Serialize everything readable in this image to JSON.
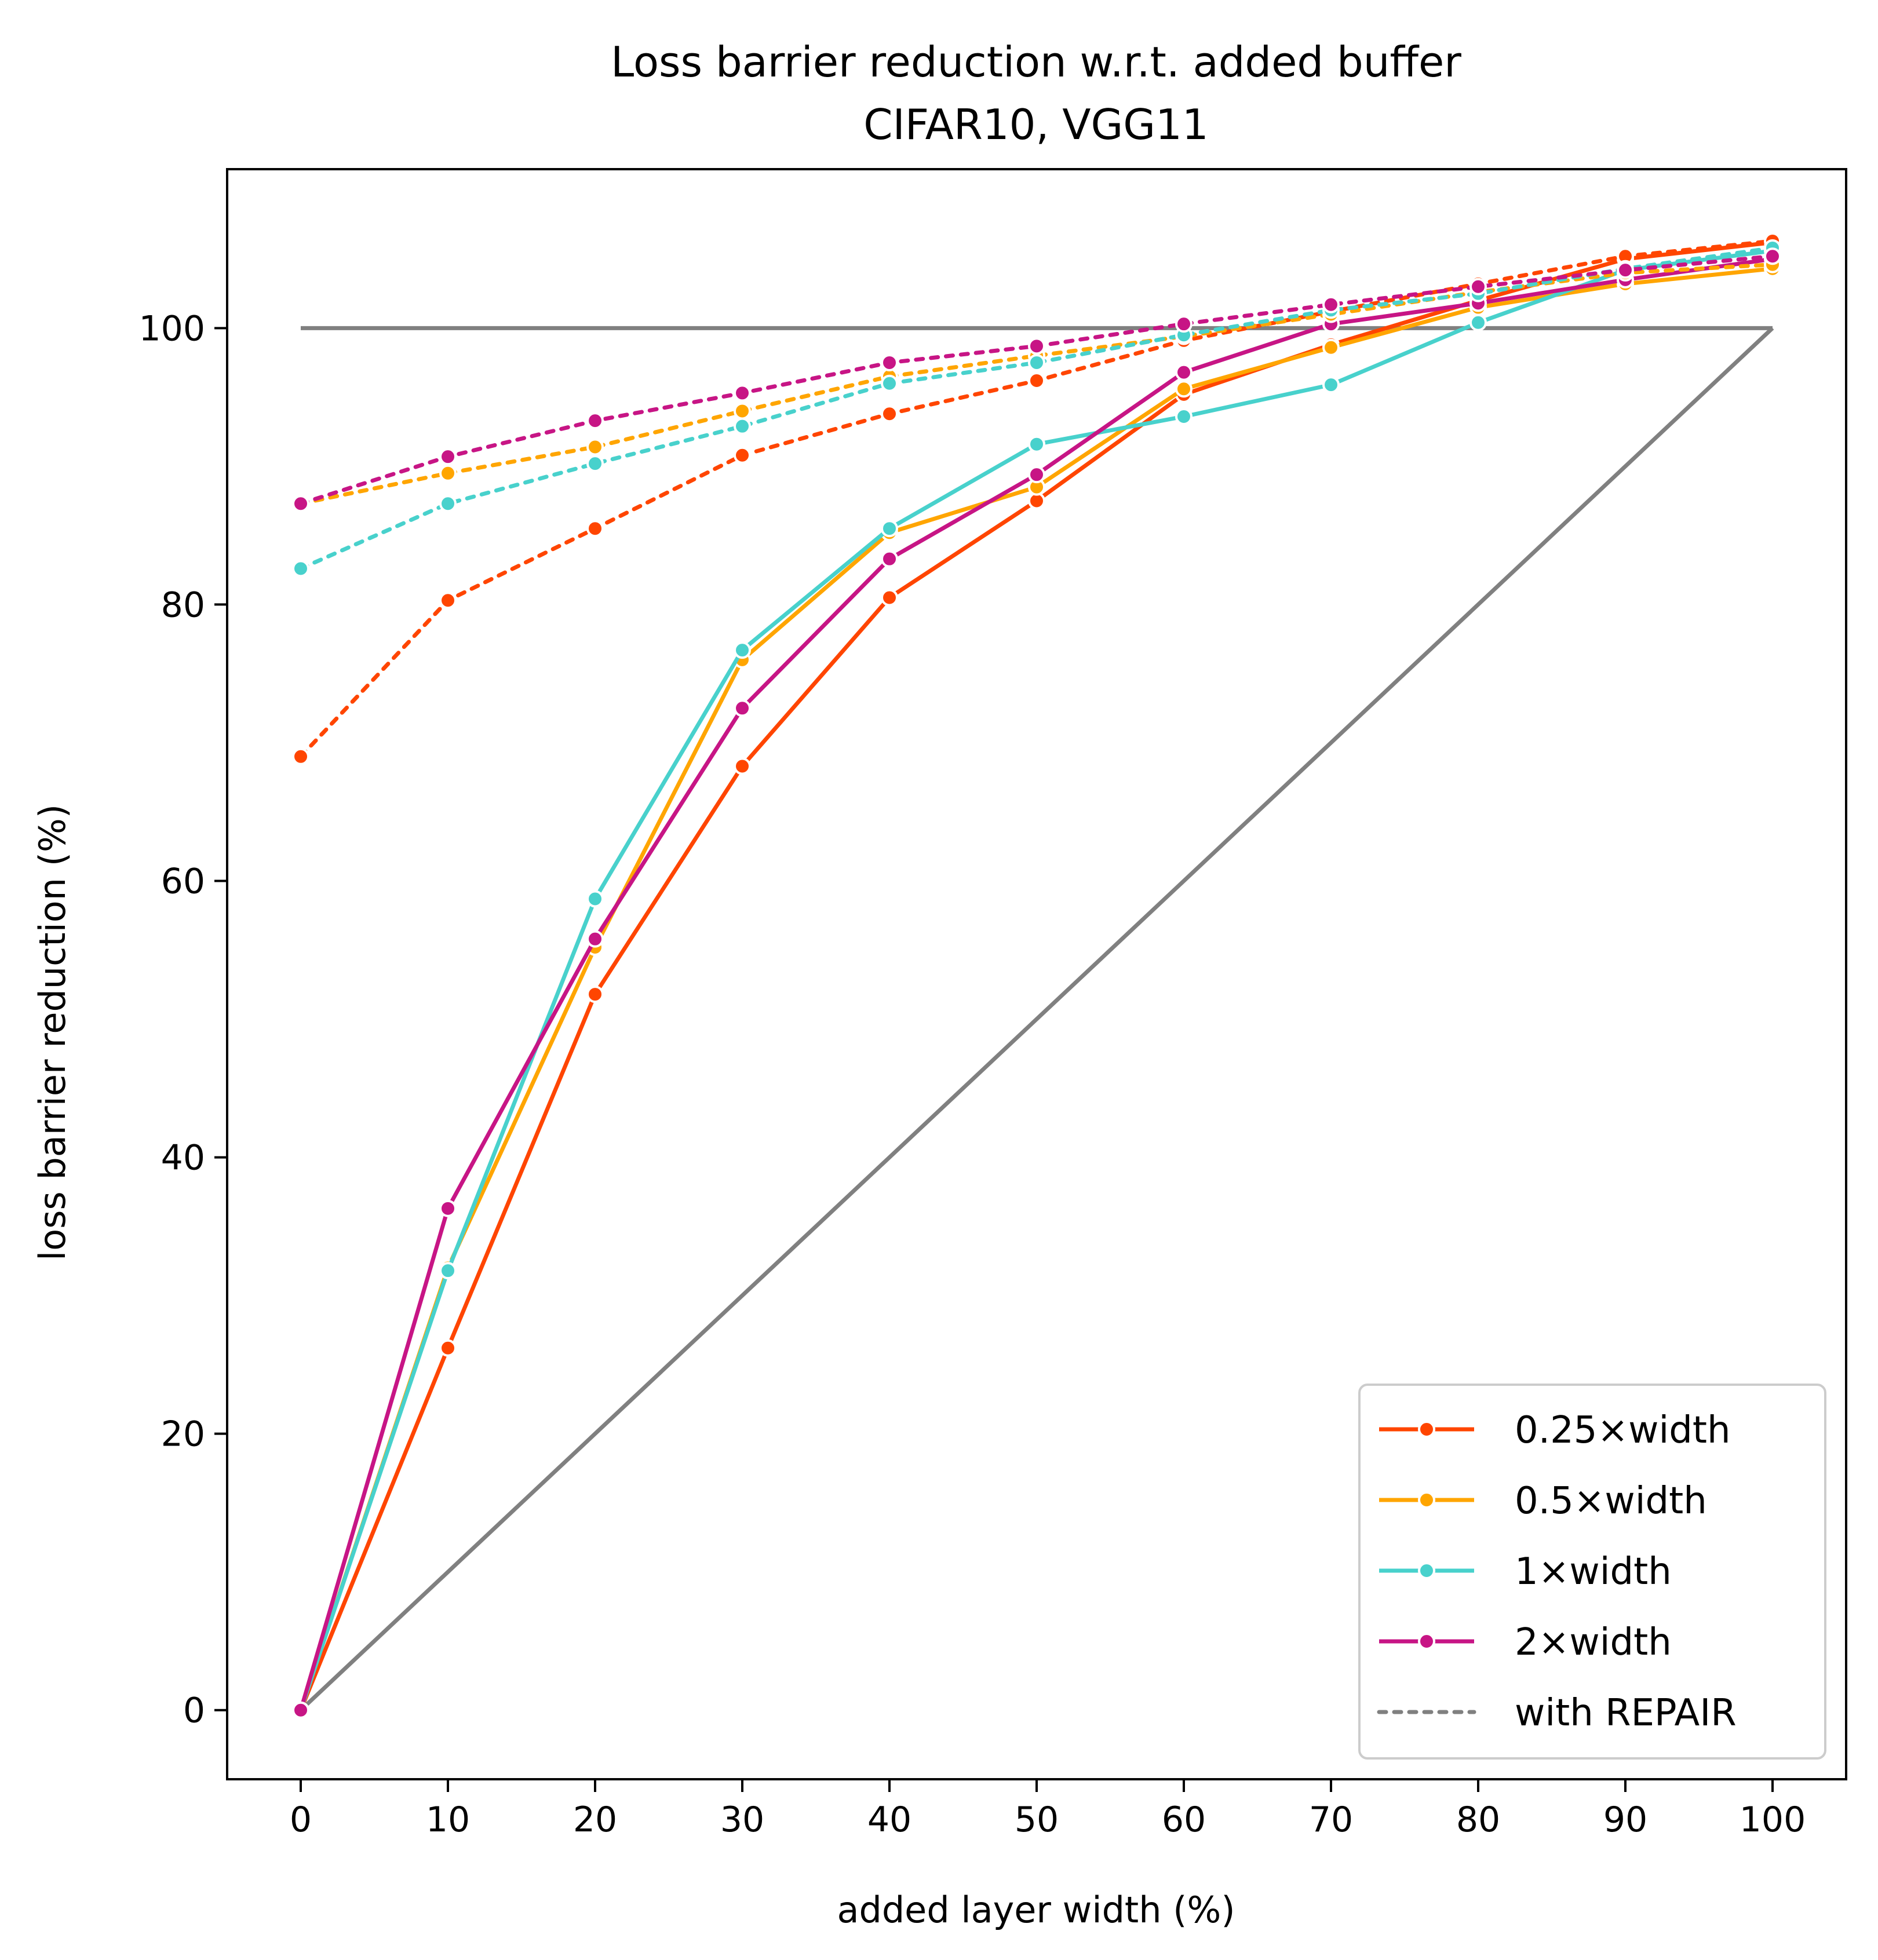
{
  "chart_data": {
    "type": "line",
    "title": "Loss barrier reduction w.r.t. added buffer",
    "subtitle": "CIFAR10, VGG11",
    "xlabel": "added layer width (%)",
    "ylabel": "loss barrier reduction (%)",
    "xlim": [
      -5,
      105
    ],
    "ylim": [
      -5,
      111.5
    ],
    "xticks": [
      0,
      10,
      20,
      30,
      40,
      50,
      60,
      70,
      80,
      90,
      100
    ],
    "yticks": [
      0,
      20,
      40,
      60,
      80,
      100
    ],
    "grid": false,
    "legend_position": "lower-right",
    "x": [
      0,
      10,
      20,
      30,
      40,
      50,
      60,
      70,
      80,
      90,
      100
    ],
    "reference_lines": [
      {
        "x": [
          0,
          100
        ],
        "y": [
          100,
          100
        ],
        "color": "#808080"
      },
      {
        "x": [
          0,
          100
        ],
        "y": [
          0,
          100
        ],
        "color": "#808080"
      }
    ],
    "series": [
      {
        "name": "0.25×width",
        "color": "#ff4500",
        "style": "solid",
        "values": [
          0,
          26.2,
          51.8,
          68.3,
          80.5,
          87.5,
          95.2,
          98.8,
          102.0,
          105.0,
          106.2
        ]
      },
      {
        "name": "0.5×width",
        "color": "#ffa500",
        "style": "solid",
        "values": [
          0,
          32.0,
          55.2,
          76.0,
          85.2,
          88.5,
          95.6,
          98.6,
          101.5,
          103.2,
          104.3
        ]
      },
      {
        "name": "1×width",
        "color": "#48d1cc",
        "style": "solid",
        "values": [
          0,
          31.8,
          58.7,
          76.7,
          85.5,
          91.6,
          93.6,
          95.9,
          100.4,
          104.2,
          105.6
        ]
      },
      {
        "name": "2×width",
        "color": "#c71585",
        "style": "solid",
        "values": [
          0,
          36.3,
          55.8,
          72.5,
          83.3,
          89.4,
          96.8,
          100.3,
          101.8,
          103.5,
          105.0
        ]
      },
      {
        "series_of": "0.25×width",
        "color": "#ff4500",
        "style": "dotted",
        "values": [
          69.0,
          80.3,
          85.5,
          90.8,
          93.8,
          96.2,
          99.1,
          101.2,
          103.2,
          105.2,
          106.3
        ]
      },
      {
        "series_of": "0.5×width",
        "color": "#ffa500",
        "style": "dotted",
        "values": [
          87.3,
          89.5,
          91.4,
          94.0,
          96.5,
          98.0,
          99.4,
          101.0,
          102.6,
          104.0,
          104.6
        ]
      },
      {
        "series_of": "1×width",
        "color": "#48d1cc",
        "style": "dotted",
        "values": [
          82.6,
          87.3,
          90.2,
          92.9,
          96.0,
          97.5,
          99.5,
          101.3,
          102.5,
          104.3,
          105.8
        ]
      },
      {
        "series_of": "2×width",
        "color": "#c71585",
        "style": "dotted",
        "values": [
          87.3,
          90.7,
          93.3,
          95.3,
          97.5,
          98.7,
          100.3,
          101.7,
          103.0,
          104.2,
          105.2
        ]
      }
    ],
    "legend": [
      {
        "label": "0.25×width",
        "color": "#ff4500",
        "style": "solid",
        "marker": true
      },
      {
        "label": "0.5×width",
        "color": "#ffa500",
        "style": "solid",
        "marker": true
      },
      {
        "label": "1×width",
        "color": "#48d1cc",
        "style": "solid",
        "marker": true
      },
      {
        "label": "2×width",
        "color": "#c71585",
        "style": "solid",
        "marker": true
      },
      {
        "label": "with REPAIR",
        "color": "#808080",
        "style": "dotted",
        "marker": false
      }
    ]
  }
}
